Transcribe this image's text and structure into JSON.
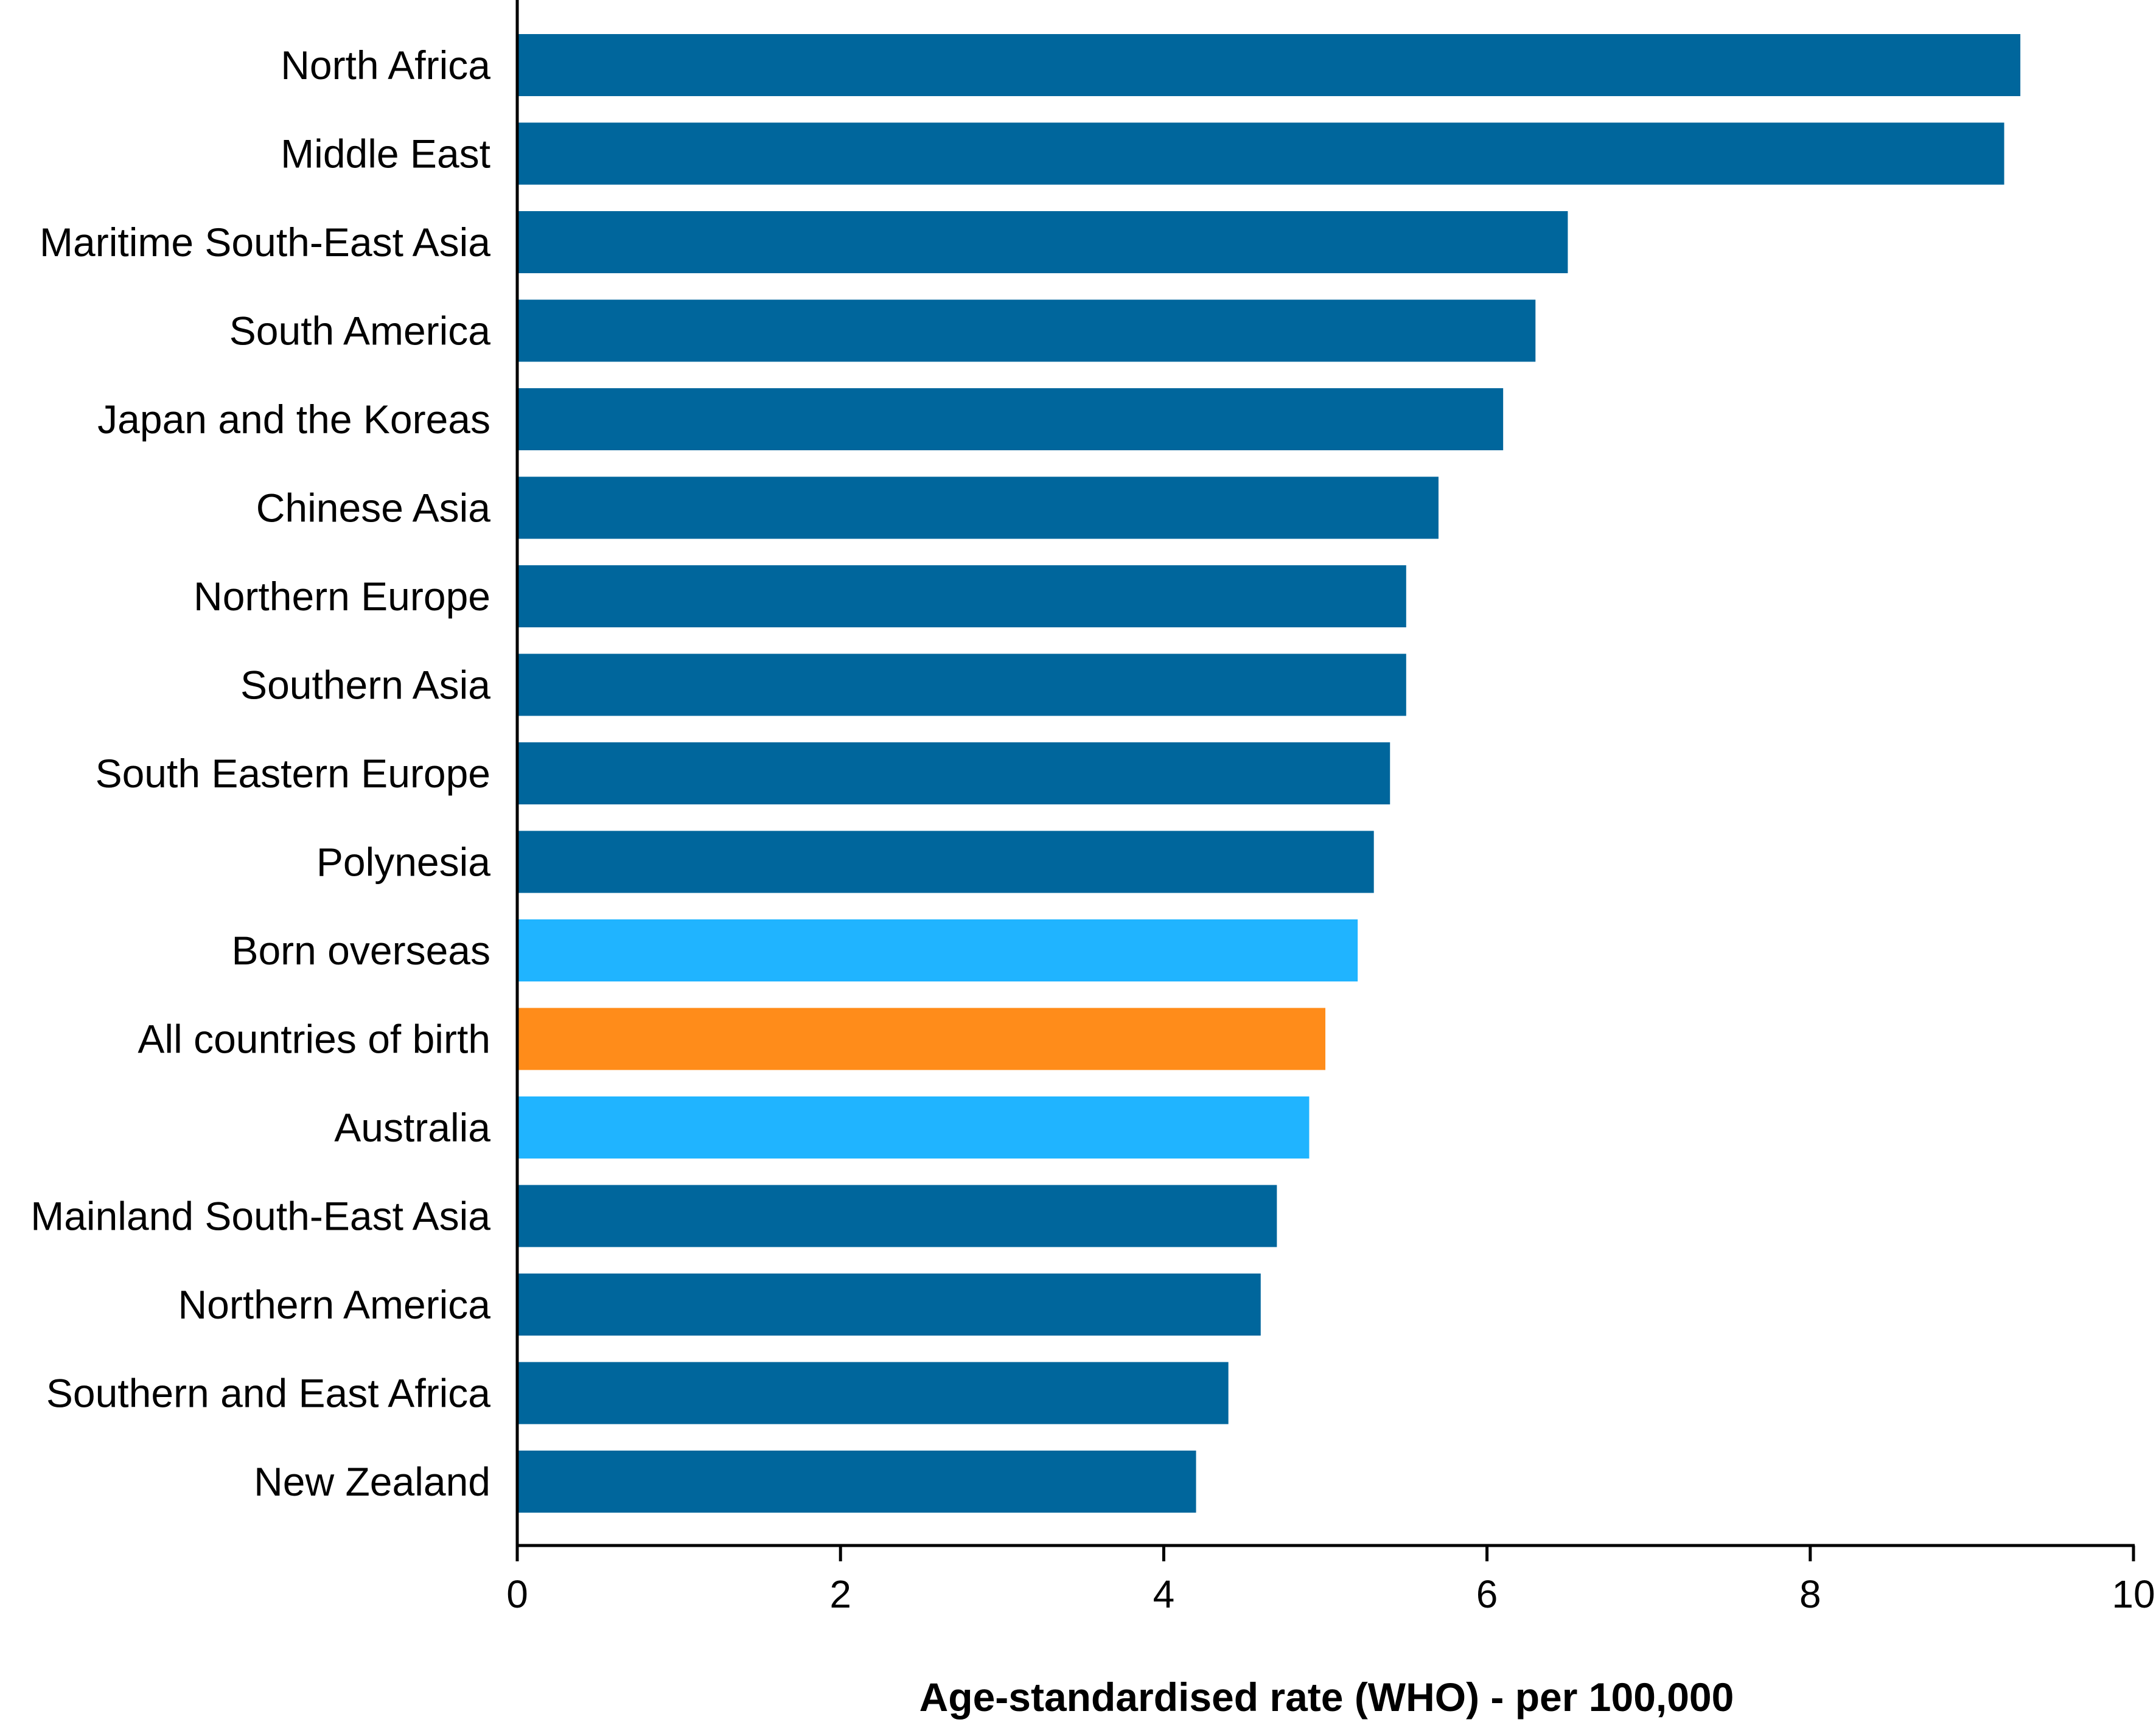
{
  "chart_data": {
    "type": "bar",
    "orientation": "horizontal",
    "title": "",
    "xlabel": "Age-standardised rate (WHO) - per 100,000",
    "ylabel": "",
    "xlim": [
      0,
      10
    ],
    "xticks": [
      0,
      2,
      4,
      6,
      8,
      10
    ],
    "grid": false,
    "legend": "none",
    "categories": [
      "North Africa",
      "Middle East",
      "Maritime South-East Asia",
      "South America",
      "Japan and the Koreas",
      "Chinese Asia",
      "Northern Europe",
      "Southern Asia",
      "South Eastern Europe",
      "Polynesia",
      "Born overseas",
      "All countries of birth",
      "Australia",
      "Mainland South-East Asia",
      "Northern America",
      "Southern and East Africa",
      "New Zealand"
    ],
    "values": [
      9.3,
      9.2,
      6.5,
      6.3,
      6.1,
      5.7,
      5.5,
      5.5,
      5.4,
      5.3,
      5.2,
      5.0,
      4.9,
      4.7,
      4.6,
      4.4,
      4.2
    ],
    "bar_colors": [
      "#00669c",
      "#00669c",
      "#00669c",
      "#00669c",
      "#00669c",
      "#00669c",
      "#00669c",
      "#00669c",
      "#00669c",
      "#00669c",
      "#20b4ff",
      "#ff8c1a",
      "#20b4ff",
      "#00669c",
      "#00669c",
      "#00669c",
      "#00669c"
    ]
  }
}
